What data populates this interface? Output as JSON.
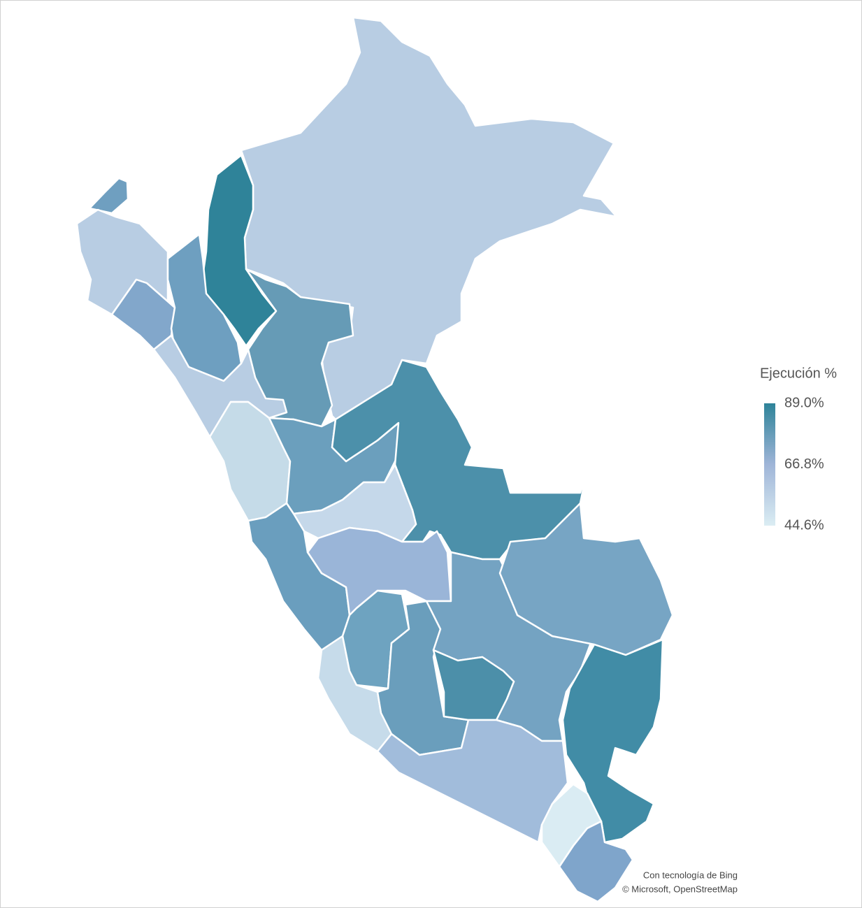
{
  "legend": {
    "title": "Ejecución %",
    "ticks": [
      {
        "value": 89.0,
        "label": "89.0%"
      },
      {
        "value": 66.8,
        "label": "66.8%"
      },
      {
        "value": 44.6,
        "label": "44.6%"
      }
    ],
    "colors": [
      "#2e8399",
      "#9fb5d8",
      "#dbedf3"
    ]
  },
  "attribution": [
    "Con tecnología de Bing",
    "© Microsoft, OpenStreetMap"
  ]
}
